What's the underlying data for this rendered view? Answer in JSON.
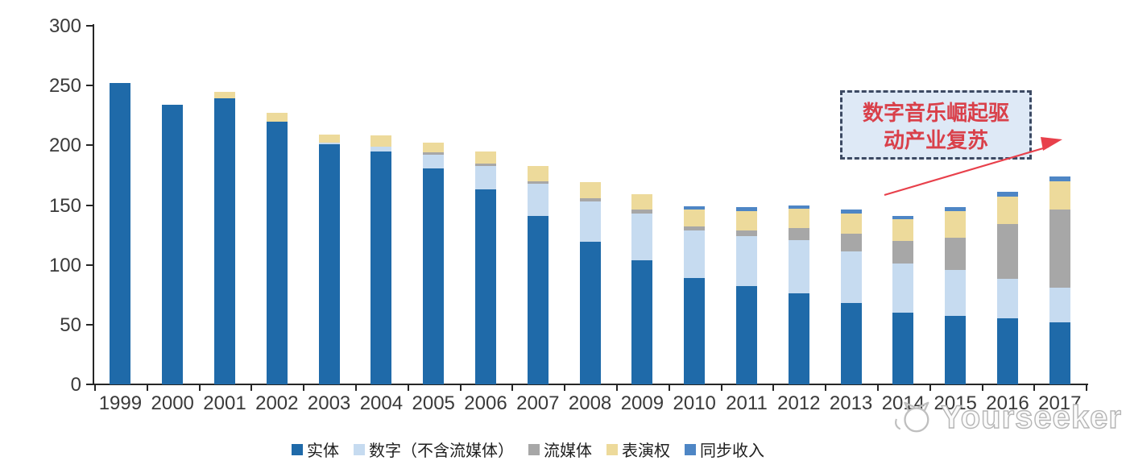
{
  "chart_data": {
    "type": "bar",
    "stacked": true,
    "title": "",
    "xlabel": "",
    "ylabel": "",
    "categories": [
      "1999",
      "2000",
      "2001",
      "2002",
      "2003",
      "2004",
      "2005",
      "2006",
      "2007",
      "2008",
      "2009",
      "2010",
      "2011",
      "2012",
      "2013",
      "2014",
      "2015",
      "2016",
      "2017"
    ],
    "series": [
      {
        "key": "physical",
        "name": "实体",
        "color": "#1F6AA9",
        "values": [
          252,
          234,
          239,
          220,
          201,
          195,
          181,
          163,
          141,
          119,
          104,
          89,
          82,
          76,
          68,
          60,
          57,
          55,
          52
        ]
      },
      {
        "key": "digital_excl_streaming",
        "name": "数字（不含流媒体）",
        "color": "#C6DBF0",
        "values": [
          0,
          0,
          0,
          0,
          1,
          4,
          11,
          20,
          27,
          34,
          39,
          40,
          42,
          45,
          43,
          41,
          39,
          33,
          29
        ]
      },
      {
        "key": "streaming",
        "name": "流媒体",
        "color": "#A7A7A7",
        "values": [
          0,
          0,
          0,
          0,
          0,
          0,
          2,
          2,
          2,
          3,
          3,
          3,
          5,
          10,
          15,
          19,
          27,
          46,
          65
        ]
      },
      {
        "key": "performance_rights",
        "name": "表演权",
        "color": "#EDDA9B",
        "values": [
          0,
          0,
          6,
          7,
          7,
          9,
          8,
          10,
          13,
          13,
          13,
          14,
          16,
          16,
          17,
          18,
          22,
          23,
          24
        ]
      },
      {
        "key": "synch",
        "name": "同步收入",
        "color": "#4E86C5",
        "values": [
          0,
          0,
          0,
          0,
          0,
          0,
          0,
          0,
          0,
          0,
          0,
          3,
          3,
          3,
          3,
          3,
          3,
          4,
          4
        ]
      }
    ],
    "ylim": [
      0,
      300
    ],
    "yticks": [
      0,
      50,
      100,
      150,
      200,
      250,
      300
    ],
    "grid": false,
    "legend_position": "bottom"
  },
  "annotation": {
    "line1": "数字音乐崛起驱",
    "line2": "动产业复苏",
    "text_color": "#D9404A",
    "box_fill": "#DEE9F6",
    "box_border_color": "#3C4A63",
    "arrow_color": "#E8404B"
  },
  "watermark": {
    "text": "Yourseeker",
    "color": "#B5B5B5"
  }
}
